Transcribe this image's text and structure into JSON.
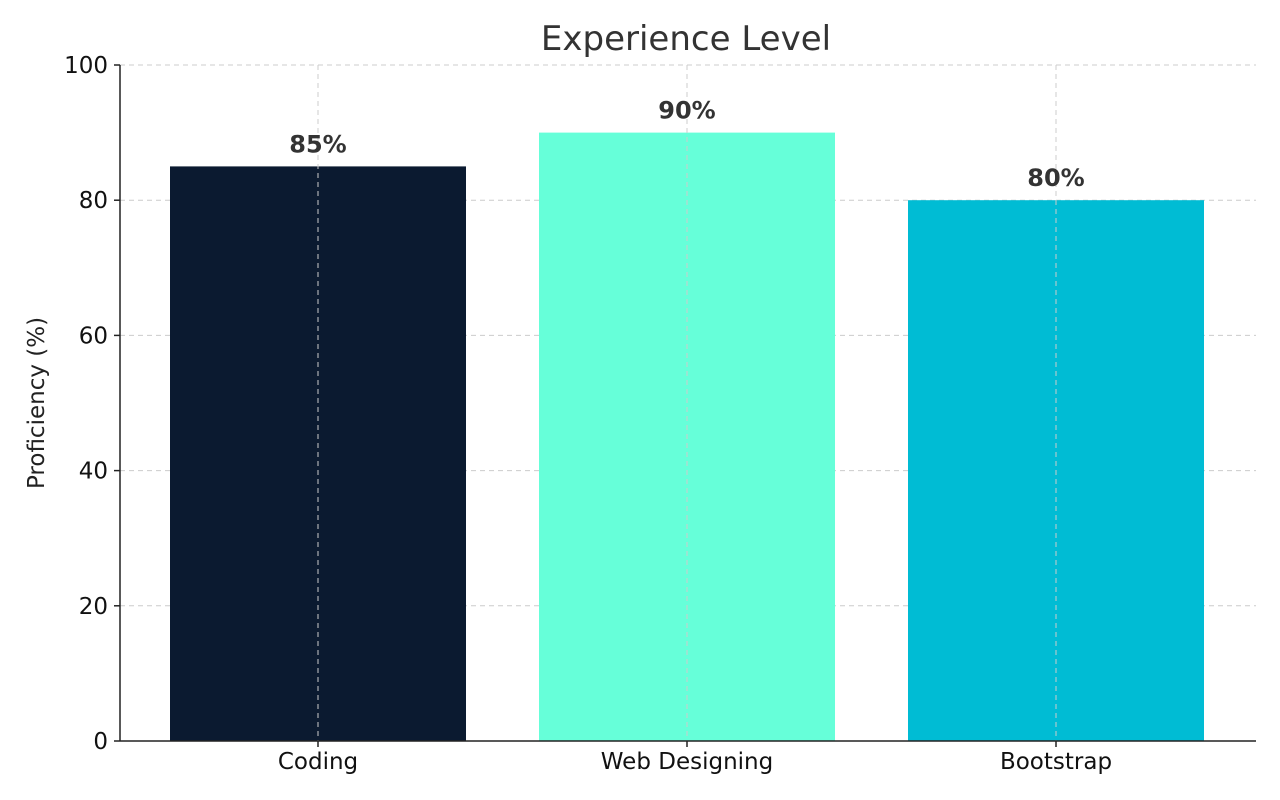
{
  "chart_data": {
    "type": "bar",
    "title": "Experience Level",
    "xlabel": "",
    "ylabel": "Proficiency (%)",
    "categories": [
      "Coding",
      "Web Designing",
      "Bootstrap"
    ],
    "values": [
      85,
      90,
      80
    ],
    "data_labels": [
      "85%",
      "90%",
      "80%"
    ],
    "colors": [
      "#0b1a30",
      "#66ffd9",
      "#00bcd4"
    ],
    "ylim": [
      0,
      100
    ],
    "yticks": [
      0,
      20,
      40,
      60,
      80,
      100
    ],
    "grid": true,
    "legend": "none"
  }
}
